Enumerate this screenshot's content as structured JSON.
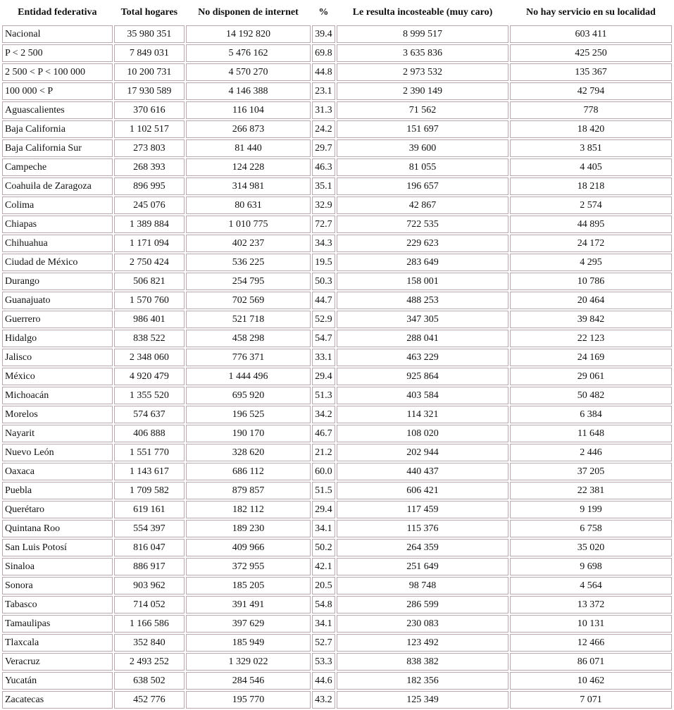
{
  "table": {
    "header": [
      "Entidad federativa",
      "Total hogares",
      "No disponen de internet",
      "%",
      "Le resulta incosteable (muy caro)",
      "No hay servicio en su localidad"
    ],
    "rows": [
      [
        "Nacional",
        "35 980 351",
        "14 192 820",
        "39.4",
        "8 999 517",
        "603 411"
      ],
      [
        "P < 2 500",
        "7 849 031",
        "5 476 162",
        "69.8",
        "3 635 836",
        "425 250"
      ],
      [
        "2 500 < P < 100 000",
        "10 200 731",
        "4 570 270",
        "44.8",
        "2 973 532",
        "135 367"
      ],
      [
        "100 000 < P",
        "17 930 589",
        "4 146 388",
        "23.1",
        "2 390 149",
        "42 794"
      ],
      [
        "Aguascalientes",
        "370 616",
        "116 104",
        "31.3",
        "71 562",
        "778"
      ],
      [
        "Baja California",
        "1 102 517",
        "266 873",
        "24.2",
        "151 697",
        "18 420"
      ],
      [
        "Baja California Sur",
        "273 803",
        "81 440",
        "29.7",
        "39 600",
        "3 851"
      ],
      [
        "Campeche",
        "268 393",
        "124 228",
        "46.3",
        "81 055",
        "4 405"
      ],
      [
        "Coahuila de Zaragoza",
        "896 995",
        "314 981",
        "35.1",
        "196 657",
        "18 218"
      ],
      [
        "Colima",
        "245 076",
        "80 631",
        "32.9",
        "42 867",
        "2 574"
      ],
      [
        "Chiapas",
        "1 389 884",
        "1 010 775",
        "72.7",
        "722 535",
        "44 895"
      ],
      [
        "Chihuahua",
        "1 171 094",
        "402 237",
        "34.3",
        "229 623",
        "24 172"
      ],
      [
        "Ciudad de México",
        "2 750 424",
        "536 225",
        "19.5",
        "283 649",
        "4 295"
      ],
      [
        "Durango",
        "506 821",
        "254 795",
        "50.3",
        "158 001",
        "10 786"
      ],
      [
        "Guanajuato",
        "1 570 760",
        "702 569",
        "44.7",
        "488 253",
        "20 464"
      ],
      [
        "Guerrero",
        "986 401",
        "521 718",
        "52.9",
        "347 305",
        "39 842"
      ],
      [
        "Hidalgo",
        "838 522",
        "458 298",
        "54.7",
        "288 041",
        "22 123"
      ],
      [
        "Jalisco",
        "2 348 060",
        "776 371",
        "33.1",
        "463 229",
        "24 169"
      ],
      [
        "México",
        "4 920 479",
        "1 444 496",
        "29.4",
        "925 864",
        "29 061"
      ],
      [
        "Michoacán",
        "1 355 520",
        "695 920",
        "51.3",
        "403 584",
        "50 482"
      ],
      [
        "Morelos",
        "574 637",
        "196 525",
        "34.2",
        "114 321",
        "6 384"
      ],
      [
        "Nayarit",
        "406 888",
        "190 170",
        "46.7",
        "108 020",
        "11 648"
      ],
      [
        "Nuevo León",
        "1 551 770",
        "328 620",
        "21.2",
        "202 944",
        "2 446"
      ],
      [
        "Oaxaca",
        "1 143 617",
        "686 112",
        "60.0",
        "440 437",
        "37 205"
      ],
      [
        "Puebla",
        "1 709 582",
        "879 857",
        "51.5",
        "606 421",
        "22 381"
      ],
      [
        "Querétaro",
        "619 161",
        "182 112",
        "29.4",
        "117 459",
        "9 199"
      ],
      [
        "Quintana Roo",
        "554 397",
        "189 230",
        "34.1",
        "115 376",
        "6 758"
      ],
      [
        "San Luis Potosí",
        "816 047",
        "409 966",
        "50.2",
        "264 359",
        "35 020"
      ],
      [
        "Sinaloa",
        "886 917",
        "372 955",
        "42.1",
        "251 649",
        "9 698"
      ],
      [
        "Sonora",
        "903 962",
        "185 205",
        "20.5",
        "98 748",
        "4 564"
      ],
      [
        "Tabasco",
        "714 052",
        "391 491",
        "54.8",
        "286 599",
        "13 372"
      ],
      [
        "Tamaulipas",
        "1 166 586",
        "397 629",
        "34.1",
        "230 083",
        "10 131"
      ],
      [
        "Tlaxcala",
        "352 840",
        "185 949",
        "52.7",
        "123 492",
        "12 466"
      ],
      [
        "Veracruz",
        "2 493 252",
        "1 329 022",
        "53.3",
        "838 382",
        "86 071"
      ],
      [
        "Yucatán",
        "638 502",
        "284 546",
        "44.6",
        "182 356",
        "10 462"
      ],
      [
        "Zacatecas",
        "452 776",
        "195 770",
        "43.2",
        "125 349",
        "7 071"
      ]
    ]
  }
}
